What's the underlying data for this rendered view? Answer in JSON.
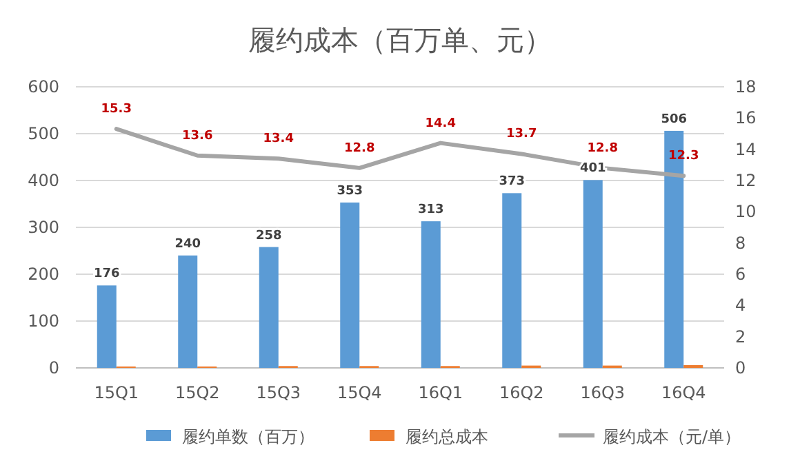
{
  "chart_data": {
    "type": "bar",
    "title": "履约成本（百万单、元）",
    "categories": [
      "15Q1",
      "15Q2",
      "15Q3",
      "15Q4",
      "16Q1",
      "16Q2",
      "16Q3",
      "16Q4"
    ],
    "series": [
      {
        "name": "履约单数（百万）",
        "color": "#5b9bd5",
        "values": [
          176,
          240,
          258,
          353,
          313,
          373,
          401,
          506
        ],
        "value_labels": [
          "176",
          "240",
          "258",
          "353",
          "313",
          "373",
          "401",
          "506"
        ]
      },
      {
        "name": "履约总成本",
        "color": "#ed7d31",
        "values": [
          3,
          3,
          4,
          4,
          4,
          5,
          5,
          6
        ]
      },
      {
        "name": "履约成本（元/单）",
        "type": "line",
        "axis": "y2",
        "color": "#a5a5a5",
        "values": [
          15.3,
          13.6,
          13.4,
          12.8,
          14.4,
          13.7,
          12.8,
          12.3
        ],
        "value_labels": [
          "15.3",
          "13.6",
          "13.4",
          "12.8",
          "14.4",
          "13.7",
          "12.8",
          "12.3"
        ]
      }
    ],
    "ylim": [
      0,
      600
    ],
    "yticks": [
      0,
      100,
      200,
      300,
      400,
      500,
      600
    ],
    "y2lim": [
      0,
      18
    ],
    "y2ticks": [
      0,
      2,
      4,
      6,
      8,
      10,
      12,
      14,
      16,
      18
    ],
    "grid": "y",
    "legend": "bottom"
  }
}
